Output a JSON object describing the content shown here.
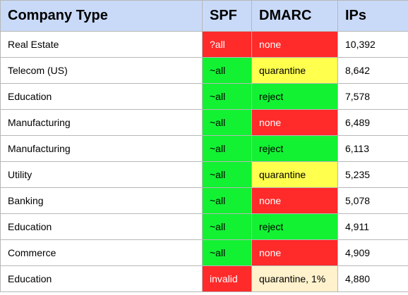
{
  "header": {
    "company_type": "Company Type",
    "spf": "SPF",
    "dmarc": "DMARC",
    "ips": "IPs"
  },
  "status_colors": {
    "red": "#ff2a2a",
    "green": "#12f233",
    "yellow": "#ffff4d",
    "peach": "#fff2cc",
    "header_bg": "#c9daf8"
  },
  "rows": [
    {
      "company_type": "Real Estate",
      "spf": "?all",
      "spf_status": "red",
      "dmarc": "none",
      "dmarc_status": "red",
      "ips": "10,392"
    },
    {
      "company_type": "Telecom (US)",
      "spf": "~all",
      "spf_status": "green",
      "dmarc": "quarantine",
      "dmarc_status": "yellow",
      "ips": "8,642"
    },
    {
      "company_type": "Education",
      "spf": "~all",
      "spf_status": "green",
      "dmarc": "reject",
      "dmarc_status": "green",
      "ips": "7,578"
    },
    {
      "company_type": "Manufacturing",
      "spf": "~all",
      "spf_status": "green",
      "dmarc": "none",
      "dmarc_status": "red",
      "ips": "6,489"
    },
    {
      "company_type": "Manufacturing",
      "spf": "~all",
      "spf_status": "green",
      "dmarc": "reject",
      "dmarc_status": "green",
      "ips": "6,113"
    },
    {
      "company_type": "Utility",
      "spf": "~all",
      "spf_status": "green",
      "dmarc": "quarantine",
      "dmarc_status": "yellow",
      "ips": "5,235"
    },
    {
      "company_type": "Banking",
      "spf": "~all",
      "spf_status": "green",
      "dmarc": "none",
      "dmarc_status": "red",
      "ips": "5,078"
    },
    {
      "company_type": "Education",
      "spf": "~all",
      "spf_status": "green",
      "dmarc": "reject",
      "dmarc_status": "green",
      "ips": "4,911"
    },
    {
      "company_type": "Commerce",
      "spf": "~all",
      "spf_status": "green",
      "dmarc": "none",
      "dmarc_status": "red",
      "ips": "4,909"
    },
    {
      "company_type": "Education",
      "spf": "invalid",
      "spf_status": "red",
      "dmarc": "quarantine, 1%",
      "dmarc_status": "peach",
      "ips": "4,880"
    }
  ]
}
